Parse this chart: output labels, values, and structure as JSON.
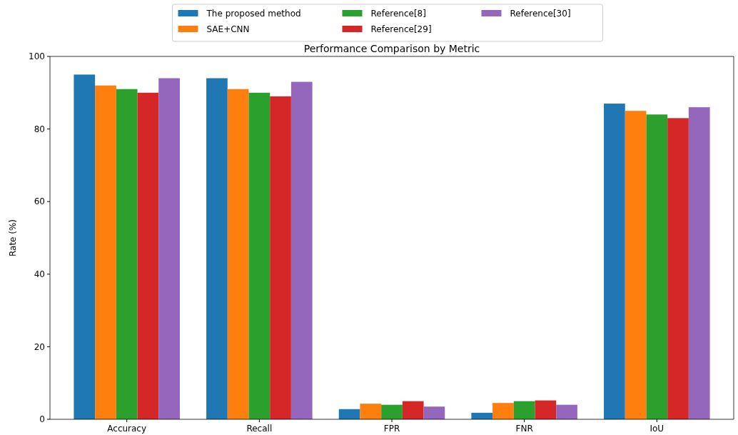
{
  "chart_data": {
    "type": "bar",
    "title": "Performance Comparison by Metric",
    "ylabel": "Rate (%)",
    "categories": [
      "Accuracy",
      "Recall",
      "FPR",
      "FNR",
      "IoU"
    ],
    "series": [
      {
        "name": "The proposed method",
        "color": "#1f77b4",
        "values": [
          95,
          94,
          2.8,
          1.8,
          87
        ]
      },
      {
        "name": "SAE+CNN",
        "color": "#ff7f0e",
        "values": [
          92,
          91,
          4.3,
          4.5,
          85
        ]
      },
      {
        "name": "Reference[8]",
        "color": "#2ca02c",
        "values": [
          91,
          90,
          4.0,
          5.0,
          84
        ]
      },
      {
        "name": "Reference[29]",
        "color": "#d62728",
        "values": [
          90,
          89,
          5.0,
          5.2,
          83
        ]
      },
      {
        "name": "Reference[30]",
        "color": "#9467bd",
        "values": [
          94,
          93,
          3.5,
          4.0,
          86
        ]
      }
    ],
    "ylim": [
      0,
      100
    ],
    "yticks": [
      0,
      20,
      40,
      60,
      80,
      100
    ],
    "legend": "top",
    "grid": false
  }
}
